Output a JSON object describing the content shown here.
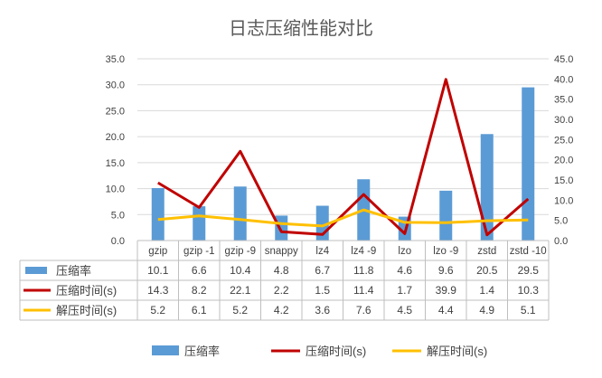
{
  "chart_data": {
    "type": "bar",
    "title": "日志压缩性能对比",
    "categories": [
      "gzip",
      "gzip -1",
      "gzip -9",
      "snappy",
      "lz4",
      "lz4 -9",
      "lzo",
      "lzo -9",
      "zstd",
      "zstd -10"
    ],
    "y_left": {
      "min": 0,
      "max": 35,
      "step": 5,
      "tick_labels": [
        "0.0",
        "5.0",
        "10.0",
        "15.0",
        "20.0",
        "25.0",
        "30.0",
        "35.0"
      ]
    },
    "y_right": {
      "min": 0,
      "max": 45,
      "step": 5,
      "tick_labels": [
        "0.0",
        "5.0",
        "10.0",
        "15.0",
        "20.0",
        "25.0",
        "30.0",
        "35.0",
        "40.0",
        "45.0"
      ]
    },
    "grid": "horizontal",
    "legend_position": "bottom",
    "data_table": true,
    "series": [
      {
        "name": "压缩率",
        "type": "bar",
        "axis": "left",
        "color": "#5B9BD5",
        "values": [
          10.1,
          6.6,
          10.4,
          4.8,
          6.7,
          11.8,
          4.6,
          9.6,
          20.5,
          29.5
        ],
        "labels": [
          "10.1",
          "6.6",
          "10.4",
          "4.8",
          "6.7",
          "11.8",
          "4.6",
          "9.6",
          "20.5",
          "29.5"
        ]
      },
      {
        "name": "压缩时间(s)",
        "type": "line",
        "axis": "right",
        "color": "#C00000",
        "values": [
          14.3,
          8.2,
          22.1,
          2.2,
          1.5,
          11.4,
          1.7,
          39.9,
          1.4,
          10.3
        ],
        "labels": [
          "14.3",
          "8.2",
          "22.1",
          "2.2",
          "1.5",
          "11.4",
          "1.7",
          "39.9",
          "1.4",
          "10.3"
        ]
      },
      {
        "name": "解压时间(s)",
        "type": "line",
        "axis": "right",
        "color": "#FFC000",
        "values": [
          5.2,
          6.1,
          5.2,
          4.2,
          3.6,
          7.6,
          4.5,
          4.4,
          4.9,
          5.1
        ],
        "labels": [
          "5.2",
          "6.1",
          "5.2",
          "4.2",
          "3.6",
          "7.6",
          "4.5",
          "4.4",
          "4.9",
          "5.1"
        ]
      }
    ]
  }
}
